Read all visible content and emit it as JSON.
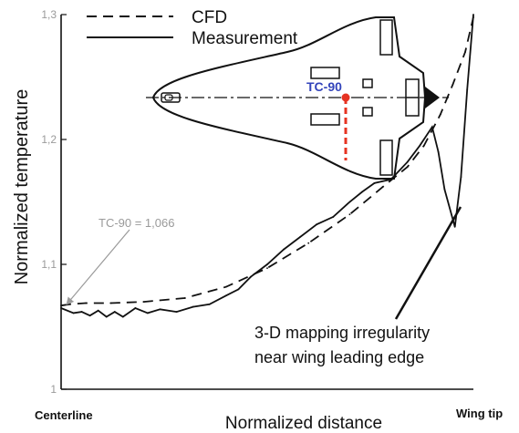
{
  "chart_data": {
    "type": "line",
    "title": "",
    "xlabel": "Normalized distance",
    "ylabel": "Normalized temperature",
    "x_endpoint_labels": {
      "left": "Centerline",
      "right": "Wing tip"
    },
    "xlim": [
      0,
      1
    ],
    "ylim": [
      1.0,
      1.3
    ],
    "yticks": [
      "1",
      "1,1",
      "1,2",
      "1,3"
    ],
    "legend_position": "top-left",
    "series": [
      {
        "name": "CFD",
        "style": "dashed",
        "color": "#111111",
        "x": [
          0.0,
          0.02,
          0.06,
          0.12,
          0.2,
          0.3,
          0.4,
          0.5,
          0.6,
          0.7,
          0.78,
          0.84,
          0.88,
          0.92,
          0.95,
          0.98,
          1.0
        ],
        "y": [
          1.067,
          1.068,
          1.069,
          1.069,
          1.07,
          1.073,
          1.082,
          1.097,
          1.117,
          1.14,
          1.162,
          1.178,
          1.195,
          1.22,
          1.244,
          1.27,
          1.298
        ]
      },
      {
        "name": "Measurement",
        "style": "solid",
        "color": "#111111",
        "x": [
          0.0,
          0.03,
          0.05,
          0.07,
          0.09,
          0.11,
          0.13,
          0.15,
          0.18,
          0.21,
          0.24,
          0.28,
          0.32,
          0.36,
          0.4,
          0.43,
          0.46,
          0.5,
          0.54,
          0.58,
          0.62,
          0.66,
          0.7,
          0.73,
          0.76,
          0.8,
          0.84,
          0.87,
          0.9,
          0.915,
          0.93,
          0.955,
          0.97,
          0.985,
          1.0
        ],
        "y": [
          1.065,
          1.061,
          1.062,
          1.059,
          1.063,
          1.058,
          1.062,
          1.058,
          1.065,
          1.061,
          1.064,
          1.062,
          1.066,
          1.068,
          1.075,
          1.08,
          1.09,
          1.1,
          1.112,
          1.122,
          1.132,
          1.138,
          1.15,
          1.158,
          1.165,
          1.168,
          1.182,
          1.195,
          1.21,
          1.19,
          1.16,
          1.13,
          1.17,
          1.24,
          1.3
        ]
      }
    ],
    "annotations": [
      {
        "text": "TC-90 = 1,066",
        "color": "#9a9a9a",
        "x": 0.0,
        "y": 1.066
      },
      {
        "text_lines": [
          "3-D mapping irregularity",
          "near wing leading edge"
        ],
        "color": "#111111",
        "x": 0.955,
        "y": 1.13
      }
    ],
    "inset": {
      "marker_label": "TC-90",
      "marker_label_color": "#3344bb",
      "marker_color": "#e63322"
    }
  }
}
